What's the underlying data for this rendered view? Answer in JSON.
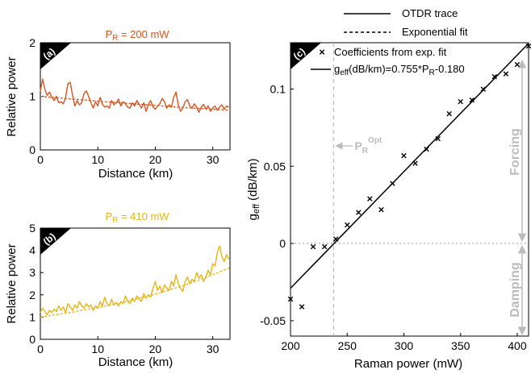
{
  "legend": {
    "otdr_label": "OTDR trace",
    "fit_label": "Exponential fit"
  },
  "chart_data": [
    {
      "id": "a",
      "type": "line",
      "panel_label": "(a)",
      "title_prefix": "P",
      "title_subscript": "R",
      "title_suffix": " = 200 mW",
      "xlabel": "Distance (km)",
      "ylabel": "Relative power",
      "xlim": [
        0,
        33
      ],
      "ylim": [
        0,
        2
      ],
      "xticks": [
        0,
        10,
        20,
        30
      ],
      "yticks": [
        0,
        1,
        2
      ],
      "colors": {
        "trace": "#d9541e",
        "fit": "#d9541e",
        "title": "#d9541e"
      },
      "series": [
        {
          "name": "OTDR trace",
          "style": "solid",
          "x": [
            0,
            0.4,
            0.8,
            1.2,
            1.6,
            2.0,
            2.4,
            2.8,
            3.2,
            3.6,
            4.0,
            4.4,
            4.8,
            5.2,
            5.6,
            6.0,
            6.4,
            6.8,
            7.2,
            7.6,
            8.0,
            8.4,
            8.8,
            9.2,
            9.6,
            10.0,
            10.4,
            10.8,
            11.2,
            11.6,
            12.0,
            12.4,
            12.8,
            13.2,
            13.6,
            14.0,
            14.4,
            14.8,
            15.2,
            15.6,
            16.0,
            16.4,
            16.8,
            17.2,
            17.6,
            18.0,
            18.4,
            18.8,
            19.2,
            19.6,
            20.0,
            20.4,
            20.8,
            21.2,
            21.6,
            22.0,
            22.4,
            22.8,
            23.2,
            23.6,
            24.0,
            24.4,
            24.8,
            25.2,
            25.6,
            26.0,
            26.4,
            26.8,
            27.2,
            27.6,
            28.0,
            28.4,
            28.8,
            29.2,
            29.6,
            30.0,
            30.4,
            30.8,
            31.2,
            31.6,
            32.0,
            32.4,
            32.8
          ],
          "y": [
            1.1,
            1.32,
            1.12,
            1.02,
            1.08,
            0.98,
            0.92,
            1.0,
            0.88,
            0.9,
            0.86,
            0.98,
            1.24,
            1.26,
            1.02,
            0.82,
            0.92,
            0.84,
            0.88,
            1.05,
            1.1,
            1.0,
            0.88,
            0.78,
            0.9,
            0.82,
            0.98,
            0.85,
            0.8,
            0.82,
            0.78,
            0.92,
            0.84,
            0.88,
            0.95,
            0.82,
            0.9,
            0.86,
            0.8,
            0.78,
            0.88,
            0.82,
            0.92,
            0.85,
            0.78,
            0.88,
            0.72,
            0.85,
            0.92,
            0.8,
            0.76,
            0.82,
            0.86,
            0.96,
            0.9,
            0.78,
            0.84,
            0.8,
            0.98,
            1.08,
            0.84,
            0.72,
            0.78,
            0.9,
            0.94,
            0.82,
            0.78,
            0.86,
            0.8,
            0.7,
            0.8,
            0.85,
            0.76,
            0.82,
            0.72,
            0.78,
            0.82,
            0.74,
            0.8,
            0.84,
            0.76,
            0.82,
            0.8
          ]
        },
        {
          "name": "Exponential fit",
          "style": "dashed",
          "x": [
            0,
            5,
            10,
            15,
            20,
            25,
            30,
            33
          ],
          "y": [
            1.0,
            0.955,
            0.91,
            0.87,
            0.83,
            0.79,
            0.76,
            0.74
          ]
        }
      ]
    },
    {
      "id": "b",
      "type": "line",
      "panel_label": "(b)",
      "title_prefix": "P",
      "title_subscript": "R",
      "title_suffix": " = 410 mW",
      "xlabel": "Distance (km)",
      "ylabel": "Relative power",
      "xlim": [
        0,
        33
      ],
      "ylim": [
        0,
        5
      ],
      "xticks": [
        0,
        10,
        20,
        30
      ],
      "yticks": [
        0,
        1,
        2,
        3,
        4,
        5
      ],
      "colors": {
        "trace": "#e8b413",
        "fit": "#e8b413",
        "title": "#e8b413"
      },
      "series": [
        {
          "name": "OTDR trace",
          "style": "solid",
          "x": [
            0,
            0.4,
            0.8,
            1.2,
            1.6,
            2.0,
            2.4,
            2.8,
            3.2,
            3.6,
            4.0,
            4.4,
            4.8,
            5.2,
            5.6,
            6.0,
            6.4,
            6.8,
            7.2,
            7.6,
            8.0,
            8.4,
            8.8,
            9.2,
            9.6,
            10.0,
            10.4,
            10.8,
            11.2,
            11.6,
            12.0,
            12.4,
            12.8,
            13.2,
            13.6,
            14.0,
            14.4,
            14.8,
            15.2,
            15.6,
            16.0,
            16.4,
            16.8,
            17.2,
            17.6,
            18.0,
            18.4,
            18.8,
            19.2,
            19.6,
            20.0,
            20.4,
            20.8,
            21.2,
            21.6,
            22.0,
            22.4,
            22.8,
            23.2,
            23.6,
            24.0,
            24.4,
            24.8,
            25.2,
            25.6,
            26.0,
            26.4,
            26.8,
            27.2,
            27.6,
            28.0,
            28.4,
            28.8,
            29.2,
            29.6,
            30.0,
            30.4,
            30.8,
            31.2,
            31.6,
            32.0,
            32.4,
            32.8
          ],
          "y": [
            1.2,
            1.4,
            1.25,
            1.1,
            1.3,
            1.2,
            1.35,
            1.25,
            1.5,
            1.3,
            1.45,
            1.2,
            1.6,
            1.45,
            1.3,
            1.55,
            1.4,
            1.7,
            1.5,
            1.4,
            1.6,
            1.45,
            1.55,
            1.3,
            1.5,
            1.4,
            1.7,
            1.5,
            1.9,
            1.6,
            1.5,
            1.8,
            1.55,
            1.65,
            1.5,
            1.7,
            1.6,
            1.95,
            1.7,
            1.6,
            1.85,
            1.7,
            1.95,
            1.8,
            1.7,
            2.05,
            1.85,
            2.0,
            1.9,
            2.3,
            2.6,
            2.2,
            2.4,
            2.1,
            2.45,
            2.3,
            2.2,
            2.6,
            2.4,
            2.9,
            2.5,
            2.3,
            2.15,
            2.6,
            2.8,
            2.5,
            2.7,
            2.6,
            3.0,
            2.75,
            2.9,
            2.6,
            2.8,
            3.1,
            2.9,
            3.4,
            3.3,
            3.9,
            4.2,
            3.7,
            3.5,
            3.8,
            3.6
          ]
        },
        {
          "name": "Exponential fit",
          "style": "dashed",
          "x": [
            0,
            5,
            10,
            15,
            20,
            25,
            30,
            33
          ],
          "y": [
            1.0,
            1.2,
            1.43,
            1.7,
            2.03,
            2.42,
            2.9,
            3.23
          ]
        }
      ]
    },
    {
      "id": "c",
      "type": "scatter",
      "panel_label": "(c)",
      "xlabel": "Raman power (mW)",
      "ylabel_prefix": "g",
      "ylabel_subscript": "eff",
      "ylabel_suffix": " (dB/km)",
      "xlim": [
        200,
        410
      ],
      "ylim": [
        -0.06,
        0.13
      ],
      "xticks": [
        200,
        250,
        300,
        350,
        400
      ],
      "yticks": [
        -0.05,
        0,
        0.05,
        0.1
      ],
      "ytick_labels": [
        "-0.05",
        "0",
        "0.05",
        "0.1"
      ],
      "legend_scatter": "Coefficients from exp. fit",
      "legend_fit_prefix": "g",
      "legend_fit_subscript": "eff",
      "legend_fit_mid": "(dB/km)=0.755*P",
      "legend_fit_subscript2": "R",
      "legend_fit_suffix": "-0.180",
      "popt_main": "P",
      "popt_sub": "R",
      "popt_sup": "Opt",
      "p_opt_x": 238,
      "forcing_label": "Forcing",
      "damping_label": "Damping",
      "colors": {
        "markers": "#000000",
        "fit": "#000000",
        "annotation": "#bbbbbb"
      },
      "series": [
        {
          "name": "Coefficients from exp. fit",
          "x": [
            200,
            210,
            220,
            230,
            240,
            250,
            260,
            270,
            280,
            290,
            300,
            310,
            320,
            330,
            340,
            350,
            360,
            370,
            380,
            390,
            400,
            410
          ],
          "y": [
            -0.036,
            -0.041,
            -0.002,
            -0.002,
            0.003,
            0.012,
            0.02,
            0.029,
            0.022,
            0.039,
            0.057,
            0.052,
            0.061,
            0.068,
            0.084,
            0.092,
            0.093,
            0.1,
            0.108,
            0.11,
            0.116,
            0.128
          ]
        }
      ],
      "fit": {
        "slope": 0.000755,
        "intercept": -0.18
      }
    }
  ]
}
